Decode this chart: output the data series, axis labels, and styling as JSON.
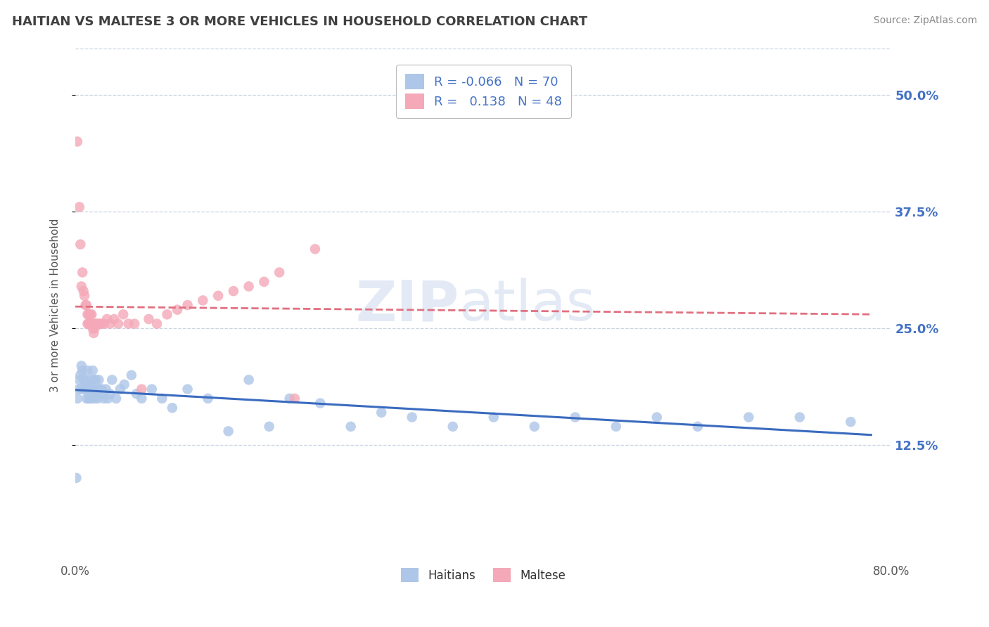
{
  "title": "HAITIAN VS MALTESE 3 OR MORE VEHICLES IN HOUSEHOLD CORRELATION CHART",
  "source_text": "Source: ZipAtlas.com",
  "ylabel": "3 or more Vehicles in Household",
  "xlim": [
    0.0,
    0.8
  ],
  "ylim": [
    0.0,
    0.55
  ],
  "yticks_right": [
    0.125,
    0.25,
    0.375,
    0.5
  ],
  "yticklabels_right": [
    "12.5%",
    "25.0%",
    "37.5%",
    "50.0%"
  ],
  "xticks": [
    0.0,
    0.8
  ],
  "xticklabels": [
    "0.0%",
    "80.0%"
  ],
  "legend_r1": "-0.066",
  "legend_n1": "70",
  "legend_r2": "0.138",
  "legend_n2": "48",
  "haitian_color": "#aec6e8",
  "maltese_color": "#f4a8b8",
  "haitian_line_color": "#3a6bbf",
  "maltese_line_color": "#e07080",
  "background_color": "#ffffff",
  "grid_color": "#c8d4e0",
  "watermark_zip": "ZIP",
  "watermark_atlas": "atlas",
  "title_color": "#404040",
  "source_color": "#888888",
  "axis_label_color": "#4472c4",
  "legend_text_color": "#4472c4",
  "legend_label_color": "#222222",
  "haitian_x": [
    0.001,
    0.002,
    0.003,
    0.004,
    0.005,
    0.006,
    0.006,
    0.007,
    0.008,
    0.009,
    0.01,
    0.01,
    0.011,
    0.011,
    0.012,
    0.012,
    0.013,
    0.013,
    0.014,
    0.015,
    0.015,
    0.016,
    0.016,
    0.017,
    0.017,
    0.018,
    0.018,
    0.019,
    0.02,
    0.02,
    0.021,
    0.022,
    0.023,
    0.024,
    0.025,
    0.026,
    0.028,
    0.03,
    0.032,
    0.034,
    0.036,
    0.04,
    0.044,
    0.048,
    0.055,
    0.06,
    0.065,
    0.075,
    0.085,
    0.095,
    0.11,
    0.13,
    0.15,
    0.17,
    0.19,
    0.21,
    0.24,
    0.27,
    0.3,
    0.33,
    0.37,
    0.41,
    0.45,
    0.49,
    0.53,
    0.57,
    0.61,
    0.66,
    0.71,
    0.76
  ],
  "haitian_y": [
    0.09,
    0.175,
    0.185,
    0.195,
    0.2,
    0.21,
    0.185,
    0.205,
    0.195,
    0.185,
    0.185,
    0.195,
    0.175,
    0.185,
    0.185,
    0.205,
    0.175,
    0.185,
    0.175,
    0.195,
    0.185,
    0.19,
    0.175,
    0.185,
    0.205,
    0.18,
    0.195,
    0.175,
    0.18,
    0.195,
    0.185,
    0.175,
    0.195,
    0.185,
    0.18,
    0.185,
    0.175,
    0.185,
    0.175,
    0.18,
    0.195,
    0.175,
    0.185,
    0.19,
    0.2,
    0.18,
    0.175,
    0.185,
    0.175,
    0.165,
    0.185,
    0.175,
    0.14,
    0.195,
    0.145,
    0.175,
    0.17,
    0.145,
    0.16,
    0.155,
    0.145,
    0.155,
    0.145,
    0.155,
    0.145,
    0.155,
    0.145,
    0.155,
    0.155,
    0.15
  ],
  "maltese_x": [
    0.002,
    0.004,
    0.005,
    0.006,
    0.007,
    0.008,
    0.009,
    0.01,
    0.011,
    0.012,
    0.012,
    0.013,
    0.013,
    0.014,
    0.015,
    0.015,
    0.016,
    0.016,
    0.017,
    0.018,
    0.019,
    0.02,
    0.021,
    0.022,
    0.024,
    0.026,
    0.028,
    0.031,
    0.034,
    0.038,
    0.042,
    0.047,
    0.052,
    0.058,
    0.065,
    0.072,
    0.08,
    0.09,
    0.1,
    0.11,
    0.125,
    0.14,
    0.155,
    0.17,
    0.185,
    0.2,
    0.215,
    0.235
  ],
  "maltese_y": [
    0.45,
    0.38,
    0.34,
    0.295,
    0.31,
    0.29,
    0.285,
    0.275,
    0.275,
    0.265,
    0.255,
    0.255,
    0.265,
    0.255,
    0.255,
    0.265,
    0.255,
    0.265,
    0.25,
    0.245,
    0.25,
    0.255,
    0.255,
    0.255,
    0.255,
    0.255,
    0.255,
    0.26,
    0.255,
    0.26,
    0.255,
    0.265,
    0.255,
    0.255,
    0.185,
    0.26,
    0.255,
    0.265,
    0.27,
    0.275,
    0.28,
    0.285,
    0.29,
    0.295,
    0.3,
    0.31,
    0.175,
    0.335
  ]
}
